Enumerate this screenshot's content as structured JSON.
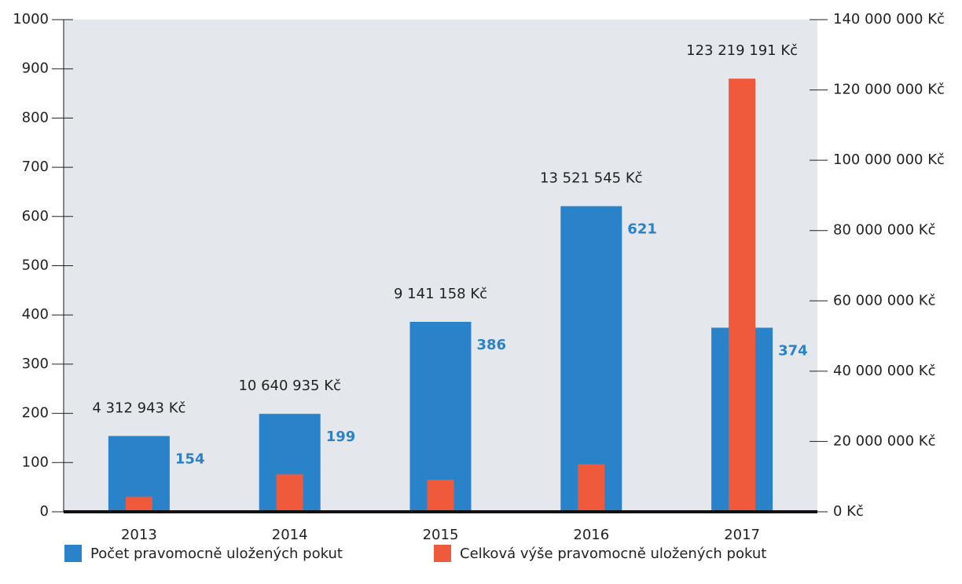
{
  "chart_data": {
    "type": "bar",
    "categories": [
      "2013",
      "2014",
      "2015",
      "2016",
      "2017"
    ],
    "series": [
      {
        "name": "Počet pravomocně uložených pokut",
        "color": "#2a82c8",
        "values": [
          154,
          199,
          386,
          621,
          374
        ]
      },
      {
        "name": "Celková výše pravomocně uložených pokut",
        "color": "#f05a3c",
        "axis": "y2",
        "values": [
          4312943,
          10640935,
          9141158,
          13521545,
          123219191
        ],
        "value_labels": [
          "4 312 943 Kč",
          "10 640 935 Kč",
          "9 141 158 Kč",
          "13 521 545 Kč",
          "123 219 191 Kč"
        ]
      }
    ],
    "ylim": [
      0,
      1000
    ],
    "yticks": [
      0,
      100,
      200,
      300,
      400,
      500,
      600,
      700,
      800,
      900,
      1000
    ],
    "y2lim": [
      0,
      140000000
    ],
    "y2ticks": [
      {
        "value": 0,
        "label": "0 Kč"
      },
      {
        "value": 20000000,
        "label": "20 000 000 Kč"
      },
      {
        "value": 40000000,
        "label": "40 000 000 Kč"
      },
      {
        "value": 60000000,
        "label": "60 000 000 Kč"
      },
      {
        "value": 80000000,
        "label": "80 000 000 Kč"
      },
      {
        "value": 100000000,
        "label": "100 000 000 Kč"
      },
      {
        "value": 120000000,
        "label": "120 000 000 Kč"
      },
      {
        "value": 140000000,
        "label": "140 000 000 Kč"
      }
    ],
    "legend": "bottom",
    "grid": false
  }
}
